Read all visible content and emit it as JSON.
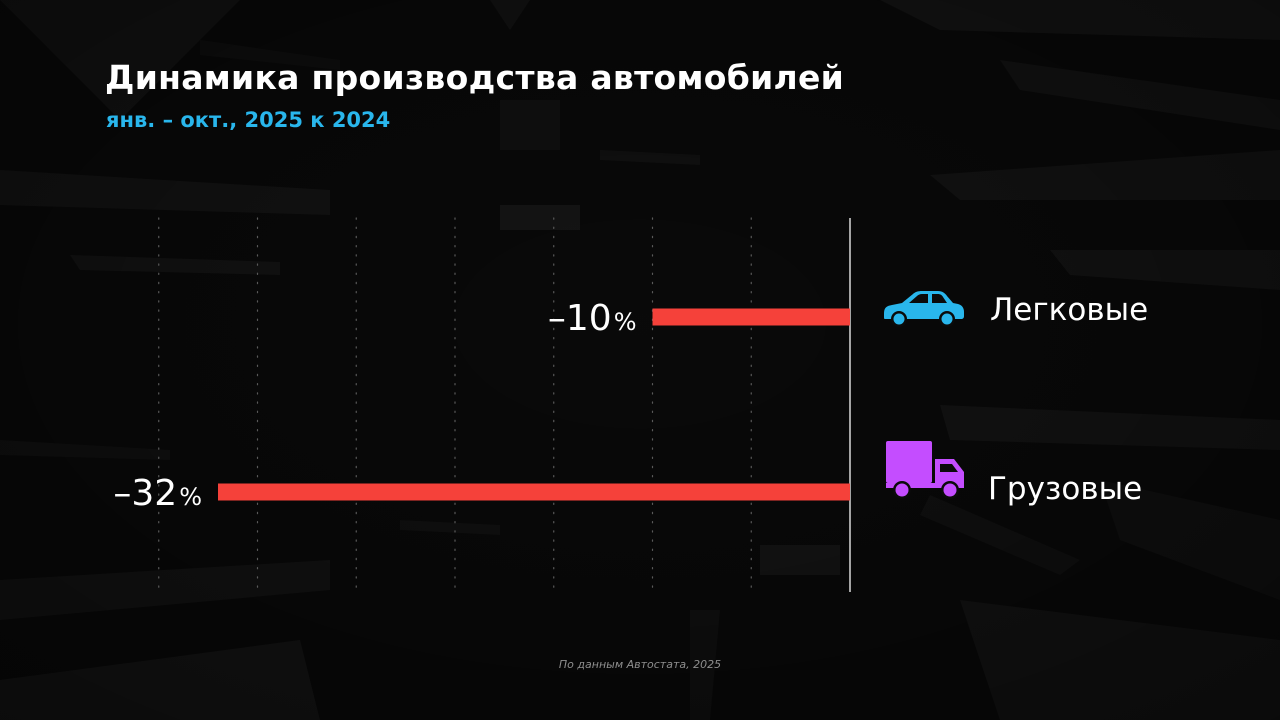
{
  "header": {
    "title": "Динамика производства автомобилей",
    "subtitle": "янв. – окт., 2025 к 2024"
  },
  "footer": {
    "source": "По данным Автостата, 2025"
  },
  "colors": {
    "bar": "#f5413a",
    "title": "#ffffff",
    "subtitle": "#29b6ec",
    "car_icon": "#29b6ec",
    "truck_icon": "#c44dff",
    "background": "#0b0b0b"
  },
  "chart_data": {
    "type": "bar",
    "orientation": "horizontal",
    "title": "Динамика производства автомобилей",
    "subtitle": "янв. – окт., 2025 к 2024",
    "categories": [
      "Легковые",
      "Грузовые"
    ],
    "values": [
      -10,
      -32
    ],
    "data_labels": [
      "–10",
      "–32"
    ],
    "unit": "%",
    "xlim": [
      -35,
      0
    ],
    "icons": [
      "car-icon",
      "truck-icon"
    ],
    "grid": true,
    "legend": "none"
  }
}
